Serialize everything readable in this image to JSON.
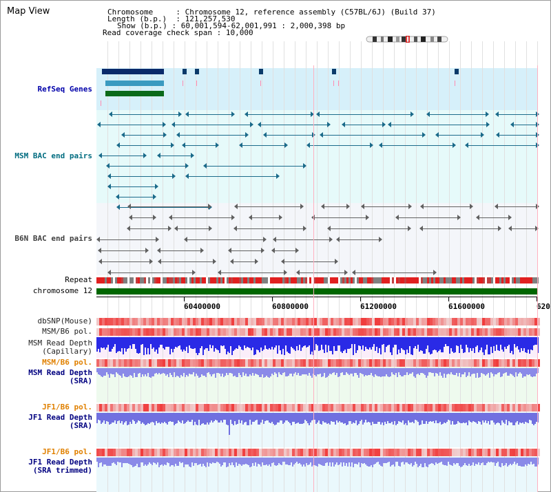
{
  "title": "Map View",
  "info": {
    "chromosome_label": "Chromosome",
    "chromosome_value": "Chromosome 12, reference assembly (C57BL/6J) (Build 37)",
    "length_label": "Length (b.p.)",
    "length_value": "121,257,530",
    "show_label": "Show (b.p.)",
    "show_value": "60,001,594-62,001,991 : 2,000,398 bp",
    "read_label": "Read coverage check span",
    "read_value": "10,000"
  },
  "tracks": {
    "refseq": "RefSeq Genes",
    "msm_bac": "MSM BAC end pairs",
    "b6n_bac": "B6N BAC end pairs",
    "repeat": "Repeat",
    "chromosome": "chromosome 12",
    "dbsnp": "dbSNP(Mouse)",
    "msm_b6_pol": "MSM/B6 pol.",
    "msm_depth_cap_1": "MSM Read Depth",
    "msm_depth_cap_2": "(Capillary)",
    "msm_b6_pol_2": "MSM/B6 pol.",
    "msm_depth_sra_1": "MSM Read Depth",
    "msm_depth_sra_2": "(SRA)",
    "jf1_b6_pol": "JF1/B6 pol.",
    "jf1_depth_sra_1": "JF1 Read Depth",
    "jf1_depth_sra_2": "(SRA)",
    "jf1_b6_pol_2": "JF1/B6 pol.",
    "jf1_depth_trim_1": "JF1 Read Depth",
    "jf1_depth_trim_2": "(SRA trimmed)"
  },
  "axis": {
    "ticks": [
      "60400000",
      "60800000",
      "61200000",
      "61600000",
      "620"
    ]
  },
  "colors": {
    "refseq_bg": "#d6f0fa",
    "bac_bg": "#e6fafa",
    "b6n_bg": "#f4f6fa",
    "chromosome_bar": "#006600",
    "depth_capillary": "#2a2ae6",
    "depth_sra": "#8a8ae8",
    "pol_red": "#f04040"
  }
}
